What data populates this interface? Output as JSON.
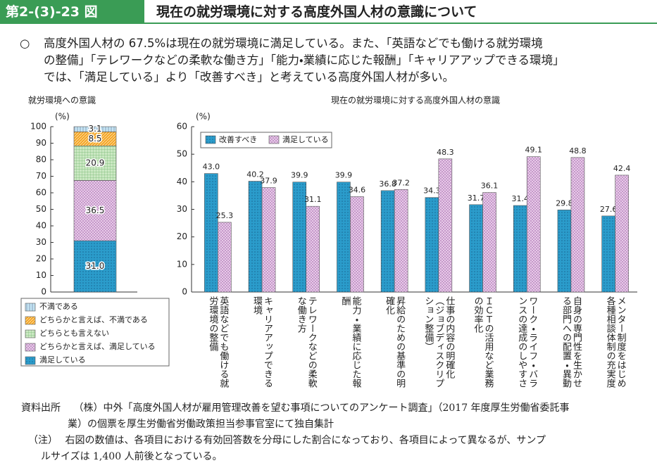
{
  "header": {
    "label": "第2-(3)-23 図",
    "title": "現在の就労環境に対する高度外国人材の意識について"
  },
  "summary": {
    "marker": "○",
    "lines": [
      "高度外国人材の 67.5%は現在の就労環境に満足している。また、「英語などでも働ける就労環境",
      "の整備」「テレワークなどの柔軟な働き方」「能力・業績に応じた報酬」「キャリアアップできる環境」",
      "では、「満足している」より「改善すべき」と考えている高度外国人材が多い。"
    ]
  },
  "chart_data": [
    {
      "type": "stacked_bar",
      "title": "就労環境への意識",
      "y_unit": "(%)",
      "ylim": [
        0,
        100
      ],
      "yticks": [
        0,
        10,
        20,
        30,
        40,
        50,
        60,
        70,
        80,
        90,
        100
      ],
      "series": [
        {
          "name": "満足している",
          "color": "#2b9ccb",
          "pattern": "dots",
          "values": [
            31.0
          ],
          "value_labels": [
            "31.0"
          ]
        },
        {
          "name": "どちらかと言えば、満足している",
          "color": "#ecd2ec",
          "pattern": "crosshatch",
          "values": [
            36.5
          ]
        },
        {
          "name": "どちらとも言えない",
          "color": "#cbe8c3",
          "pattern": "grid",
          "values": [
            20.9
          ]
        },
        {
          "name": "どちらかと言えば、不満である",
          "color": "#f5a623",
          "pattern": "diagonal",
          "values": [
            8.5
          ]
        },
        {
          "name": "不満である",
          "color": "#c4e5f3",
          "pattern": "vlines",
          "values": [
            3.1
          ]
        }
      ]
    },
    {
      "type": "bar",
      "title": "現在の就労環境に対する高度外国人材の意識",
      "y_unit": "(%)",
      "categories": [
        "英語などでも働ける就労環境の整備",
        "キャリアアップできる環境",
        "テレワークなどの柔軟な働き方",
        "能力・業績に応じた報酬",
        "昇給のための基準の明確化",
        "仕事の内容の明確化（ジョブディスクリプション整備）",
        "ＩＣＴの活用など業務の効率化",
        "ワーク・ライフ・バランスの達成のしやすさ",
        "自身の専門性を生かせる部門への配置・異動",
        "メンター制度をはじめ各種相談体制の充実度"
      ],
      "ylim": [
        0,
        60
      ],
      "yticks": [
        0,
        10,
        20,
        30,
        40,
        50,
        60
      ],
      "series": [
        {
          "name": "改善すべき",
          "color": "#2b9ccb",
          "pattern": "dots",
          "values": [
            43.0,
            40.2,
            39.9,
            39.9,
            36.8,
            34.3,
            31.7,
            31.4,
            29.8,
            27.6
          ],
          "value_labels": [
            "43.0",
            "40.2",
            "39.9",
            "39.9",
            "36.8",
            "34.3",
            "31.7",
            "31.4",
            "29.8",
            "27.6"
          ]
        },
        {
          "name": "満足している",
          "color": "#ecd2ec",
          "pattern": "crosshatch",
          "values": [
            25.3,
            37.9,
            31.1,
            34.6,
            37.2,
            48.3,
            36.1,
            49.1,
            48.8,
            42.4
          ]
        }
      ]
    }
  ],
  "notes": {
    "source_label": "資料出所",
    "source_lines": [
      "（株）中外「高度外国人材が雇用管理改善を望む事項についてのアンケート調査」（2017 年度厚生労働省委託事",
      "業）の個票を厚生労働省労働政策担当参事官室にて独自集計"
    ],
    "note_label": "（注）",
    "note_lines": [
      "右図の数値は、各項目における有効回答数を分母にした割合になっており、各項目によって異なるが、サンプ",
      "ルサイズは 1,400 人前後となっている。"
    ]
  }
}
